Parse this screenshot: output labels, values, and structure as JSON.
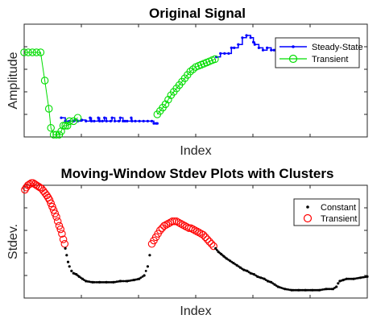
{
  "chart_data": [
    {
      "type": "line",
      "title": "Original Signal",
      "xlabel": "Index",
      "ylabel": "Amplitude",
      "xlim": [
        0,
        100
      ],
      "ylim": [
        0,
        100
      ],
      "tick_labels_shown": false,
      "legend": {
        "position": "top-right",
        "entries": [
          "Steady-State",
          "Transient"
        ]
      },
      "series": [
        {
          "name": "Steady-State",
          "color": "#0000ff",
          "marker": "dot",
          "x": [
            10.8,
            12.0,
            13.2,
            14.4,
            14.8,
            15.6,
            16.8,
            18.0,
            19.2,
            19.6,
            20.4,
            21.6,
            22.0,
            22.8,
            23.4,
            24.0,
            25.2,
            25.6,
            26.4,
            27.6,
            28.0,
            28.8,
            29.4,
            30.0,
            31.2,
            31.4,
            32.4,
            33.6,
            34.8,
            36.0,
            37.2,
            37.8,
            38.4,
            38.8,
            56.0,
            57.2,
            58.4,
            59.6,
            60.4,
            61.2,
            62.4,
            63.6,
            64.8,
            66.0,
            66.8,
            67.2,
            68.4,
            69.6,
            70.8,
            72.0,
            72.8,
            73.2,
            74.4,
            75.6,
            76.8,
            78.0,
            79.2,
            80.4,
            81.6,
            82.8,
            84.0,
            85.2,
            86.4,
            87.6,
            88.8,
            90.0,
            91.2,
            92.4,
            93.6,
            94.8
          ],
          "y": [
            17,
            14,
            14,
            14,
            15,
            14,
            15,
            14,
            17,
            14,
            14,
            17,
            14,
            14,
            17,
            14,
            14,
            17,
            14,
            14,
            17,
            14,
            14,
            14,
            17,
            14,
            14,
            14,
            14,
            14,
            14,
            12,
            12,
            12,
            71,
            74,
            74,
            74,
            79,
            79,
            82,
            88,
            90,
            88,
            84,
            82,
            79,
            77,
            79,
            77,
            77,
            77,
            77,
            77,
            77,
            77,
            77,
            77,
            77,
            77,
            77,
            77,
            77,
            77,
            77,
            77,
            77,
            77,
            77,
            77
          ]
        },
        {
          "name": "Transient",
          "color": "#00dd00",
          "marker": "circle",
          "x": [
            0.0,
            1.2,
            2.4,
            3.6,
            4.8,
            6.0,
            7.2,
            7.8,
            8.6,
            9.4,
            10.2,
            10.8,
            11.4,
            12.0,
            12.6,
            13.2,
            14.4,
            15.6,
            38.8,
            39.6,
            40.4,
            41.2,
            42.0,
            42.8,
            43.6,
            44.4,
            45.2,
            46.0,
            46.8,
            47.6,
            48.4,
            49.2,
            50.0,
            50.8,
            51.6,
            52.4,
            53.2,
            54.0,
            54.8,
            55.6
          ],
          "y": [
            75,
            75,
            75,
            75,
            75,
            50,
            25,
            8,
            2,
            2,
            2,
            5,
            10,
            10,
            10,
            14,
            14,
            17,
            20,
            23,
            26,
            29,
            33,
            37,
            40,
            43,
            46,
            49,
            52,
            55,
            58,
            60,
            62,
            63,
            64,
            65,
            66,
            67,
            68,
            69
          ]
        }
      ]
    },
    {
      "type": "scatter",
      "title": "Moving-Window Stdev Plots with Clusters",
      "xlabel": "Index",
      "ylabel": "Stdev.",
      "xlim": [
        0,
        100
      ],
      "ylim": [
        0,
        100
      ],
      "tick_labels_shown": false,
      "legend": {
        "position": "top-right",
        "entries": [
          "Constant",
          "Transient"
        ]
      },
      "series": [
        {
          "name": "Transient",
          "color": "#ff0000",
          "marker": "circle",
          "x": [
            0.2,
            0.6,
            1.1,
            1.6,
            2.1,
            2.6,
            3.1,
            3.6,
            4.1,
            4.6,
            5.1,
            5.6,
            6.1,
            6.6,
            7.0,
            7.4,
            7.8,
            8.2,
            8.6,
            9.0,
            9.4,
            9.8,
            10.2,
            10.6,
            11.0,
            11.4,
            11.8,
            37.2,
            37.8,
            38.4,
            39.0,
            39.6,
            40.2,
            40.8,
            41.4,
            42.0,
            42.6,
            43.2,
            43.8,
            44.4,
            45.0,
            45.6,
            46.2,
            46.8,
            47.4,
            48.0,
            48.6,
            49.2,
            49.8,
            50.4,
            51.0,
            51.6,
            52.2,
            52.8,
            53.4,
            54.0,
            54.6,
            55.2
          ],
          "y": [
            96,
            98,
            100,
            101,
            102,
            102,
            101,
            100,
            99,
            98,
            97,
            95,
            93,
            91,
            89,
            87,
            84,
            81,
            78,
            75,
            72,
            68,
            64,
            61,
            57,
            52,
            48,
            48,
            51,
            54,
            57,
            60,
            62,
            64,
            65,
            66,
            67,
            68,
            68,
            68,
            67,
            66,
            65,
            64,
            63,
            62,
            62,
            61,
            60,
            59,
            58,
            57,
            56,
            54,
            52,
            50,
            48,
            46
          ]
        },
        {
          "name": "Constant",
          "color": "#000000",
          "marker": "dot",
          "x": [
            12.0,
            12.4,
            12.8,
            13.2,
            13.8,
            14.4,
            15.2,
            16.0,
            17.0,
            18.0,
            20.0,
            22.0,
            24.0,
            26.0,
            28.0,
            30.0,
            32.0,
            33.5,
            35.0,
            36.0,
            36.6,
            55.8,
            56.6,
            57.4,
            58.2,
            59.0,
            60.0,
            61.0,
            62.0,
            63.0,
            64.0,
            65.0,
            66.0,
            67.0,
            68.0,
            69.0,
            70.0,
            71.0,
            72.0,
            73.0,
            74.0,
            76.0,
            78.0,
            80.0,
            82.0,
            84.0,
            86.0,
            88.0,
            90.0,
            91.0,
            91.5,
            92.0,
            93.0,
            94.0,
            96.0,
            98.0,
            100.0
          ],
          "y": [
            44,
            38,
            32,
            28,
            24,
            22,
            21,
            19,
            17,
            15,
            14,
            14,
            14,
            14,
            15,
            15,
            16,
            17,
            20,
            28,
            38,
            44,
            41,
            39,
            37,
            35,
            33,
            31,
            29,
            27,
            25,
            24,
            22,
            21,
            19,
            18,
            17,
            15,
            14,
            12,
            10,
            8,
            7,
            7,
            7,
            7,
            7,
            8,
            8,
            10,
            13,
            15,
            16,
            17,
            17,
            18,
            19
          ]
        }
      ]
    }
  ]
}
